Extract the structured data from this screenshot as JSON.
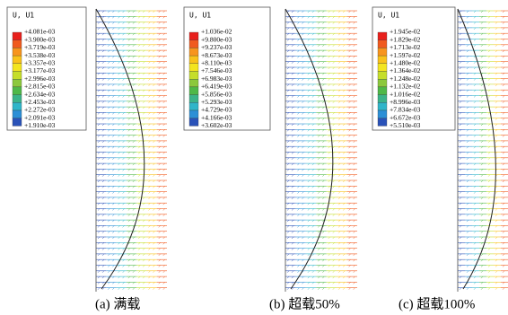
{
  "panels": [
    {
      "legend_title": "U, U1",
      "legend_labels": [
        "+4.081e-03",
        "+3.900e-03",
        "+3.719e-03",
        "+3.538e-03",
        "+3.357e-03",
        "+3.177e-03",
        "+2.996e-03",
        "+2.815e-03",
        "+2.634e-03",
        "+2.453e-03",
        "+2.272e-03",
        "+2.091e-03",
        "+1.910e-03"
      ],
      "caption": "(a) 满载"
    },
    {
      "legend_title": "U, U1",
      "legend_labels": [
        "+1.036e-02",
        "+9.800e-03",
        "+9.237e-03",
        "+8.673e-03",
        "+8.110e-03",
        "+7.546e-03",
        "+6.983e-03",
        "+6.419e-03",
        "+5.856e-03",
        "+5.293e-03",
        "+4.729e-03",
        "+4.166e-03",
        "+3.602e-03"
      ],
      "caption": "(b) 超载50%"
    },
    {
      "legend_title": "U, U1",
      "legend_labels": [
        "+1.945e-02",
        "+1.829e-02",
        "+1.713e-02",
        "+1.597e-02",
        "+1.480e-02",
        "+1.364e-02",
        "+1.248e-02",
        "+1.132e-02",
        "+1.016e-02",
        "+8.996e-03",
        "+7.834e-03",
        "+6.672e-03",
        "+5.510e-03"
      ],
      "caption": "(c) 超载100%"
    }
  ]
}
